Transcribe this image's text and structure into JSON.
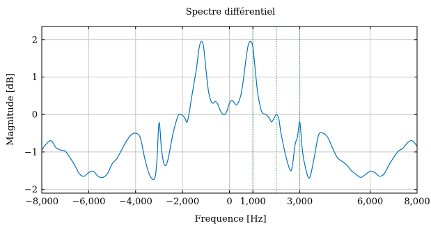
{
  "chart_data": {
    "type": "line",
    "title": "Spectre différentiel",
    "xlabel": "Frequence [Hz]",
    "ylabel": "Magnitude [dB]",
    "xlim": [
      -8000,
      8000
    ],
    "ylim": [
      -2.1,
      2.35
    ],
    "xticks": [
      -8000,
      -6000,
      -4000,
      -2000,
      0,
      1000,
      3000,
      6000,
      8000
    ],
    "xtick_labels": [
      "−8,000",
      "−6,000",
      "−4,000",
      "−2,000",
      "0",
      "1,000",
      "3,000",
      "6,000",
      "8,000"
    ],
    "yticks": [
      -2,
      -1,
      0,
      1,
      2
    ],
    "ytick_labels": [
      "−2",
      "−1",
      "0",
      "1",
      "2"
    ],
    "grid": true,
    "series": [
      {
        "color": "#0072BD",
        "x": [
          -8000,
          -7800,
          -7600,
          -7400,
          -7200,
          -7000,
          -6800,
          -6600,
          -6400,
          -6200,
          -6000,
          -5800,
          -5600,
          -5400,
          -5200,
          -5000,
          -4800,
          -4600,
          -4400,
          -4200,
          -4000,
          -3800,
          -3600,
          -3400,
          -3200,
          -3100,
          -3000,
          -2900,
          -2800,
          -2700,
          -2600,
          -2400,
          -2200,
          -2100,
          -2000,
          -1900,
          -1800,
          -1700,
          -1600,
          -1400,
          -1300,
          -1200,
          -1100,
          -1000,
          -900,
          -800,
          -700,
          -600,
          -500,
          -400,
          -300,
          -200,
          -100,
          0,
          100,
          200,
          300,
          400,
          500,
          600,
          700,
          800,
          900,
          1000,
          1100,
          1200,
          1300,
          1400,
          1600,
          1700,
          1800,
          1900,
          2000,
          2100,
          2200,
          2400,
          2600,
          2700,
          2800,
          2900,
          3000,
          3100,
          3200,
          3400,
          3600,
          3800,
          4000,
          4200,
          4400,
          4600,
          4800,
          5000,
          5200,
          5400,
          5600,
          5800,
          6000,
          6200,
          6400,
          6600,
          6800,
          7000,
          7200,
          7400,
          7600,
          7800,
          8000
        ],
        "y": [
          -0.95,
          -0.78,
          -0.7,
          -0.88,
          -0.95,
          -0.98,
          -1.15,
          -1.35,
          -1.58,
          -1.65,
          -1.55,
          -1.52,
          -1.65,
          -1.68,
          -1.58,
          -1.32,
          -1.18,
          -0.95,
          -0.72,
          -0.55,
          -0.5,
          -0.62,
          -1.2,
          -1.62,
          -1.72,
          -1.3,
          -0.22,
          -0.9,
          -1.3,
          -1.35,
          -1.15,
          -0.5,
          -0.05,
          0.0,
          -0.02,
          -0.1,
          -0.2,
          0.1,
          0.5,
          1.25,
          1.75,
          1.95,
          1.8,
          1.2,
          0.65,
          0.38,
          0.3,
          0.35,
          0.28,
          0.12,
          0.02,
          0.0,
          0.1,
          0.3,
          0.38,
          0.32,
          0.25,
          0.35,
          0.55,
          0.95,
          1.45,
          1.85,
          1.95,
          1.8,
          1.2,
          0.6,
          0.25,
          0.05,
          -0.02,
          -0.1,
          -0.2,
          -0.1,
          0.0,
          -0.1,
          -0.5,
          -1.1,
          -1.5,
          -1.3,
          -0.8,
          -0.6,
          -0.2,
          -0.9,
          -1.3,
          -1.7,
          -1.2,
          -0.55,
          -0.5,
          -0.62,
          -0.9,
          -1.15,
          -1.25,
          -1.35,
          -1.5,
          -1.6,
          -1.68,
          -1.6,
          -1.52,
          -1.55,
          -1.65,
          -1.58,
          -1.35,
          -1.15,
          -0.98,
          -0.9,
          -0.75,
          -0.7,
          -0.85
        ]
      }
    ],
    "vertical_lines": [
      {
        "x": 1000,
        "color": "#2ca02c",
        "style": "dotted"
      },
      {
        "x": 2000,
        "color": "#2ca02c",
        "style": "dotted"
      },
      {
        "x": 3000,
        "color": "#2ca02c",
        "style": "dotted"
      }
    ]
  }
}
